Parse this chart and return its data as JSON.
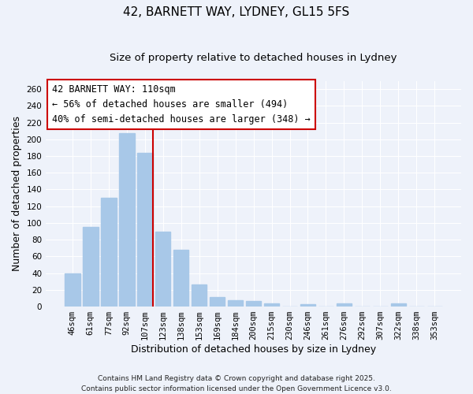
{
  "title": "42, BARNETT WAY, LYDNEY, GL15 5FS",
  "subtitle": "Size of property relative to detached houses in Lydney",
  "xlabel": "Distribution of detached houses by size in Lydney",
  "ylabel": "Number of detached properties",
  "categories": [
    "46sqm",
    "61sqm",
    "77sqm",
    "92sqm",
    "107sqm",
    "123sqm",
    "138sqm",
    "153sqm",
    "169sqm",
    "184sqm",
    "200sqm",
    "215sqm",
    "230sqm",
    "246sqm",
    "261sqm",
    "276sqm",
    "292sqm",
    "307sqm",
    "322sqm",
    "338sqm",
    "353sqm"
  ],
  "values": [
    40,
    95,
    130,
    207,
    184,
    90,
    68,
    26,
    11,
    8,
    7,
    4,
    0,
    3,
    0,
    4,
    0,
    0,
    4,
    0,
    0
  ],
  "bar_color": "#a8c8e8",
  "bar_edge_color": "#a8c8e8",
  "vline_color": "#cc0000",
  "vline_x_index": 4,
  "ylim": [
    0,
    270
  ],
  "yticks": [
    0,
    20,
    40,
    60,
    80,
    100,
    120,
    140,
    160,
    180,
    200,
    220,
    240,
    260
  ],
  "ann_line1": "42 BARNETT WAY: 110sqm",
  "ann_line2": "← 56% of detached houses are smaller (494)",
  "ann_line3": "40% of semi-detached houses are larger (348) →",
  "bg_color": "#eef2fa",
  "footer_line1": "Contains HM Land Registry data © Crown copyright and database right 2025.",
  "footer_line2": "Contains public sector information licensed under the Open Government Licence v3.0.",
  "title_fontsize": 11,
  "subtitle_fontsize": 9.5,
  "axis_label_fontsize": 9,
  "tick_fontsize": 7.5,
  "annotation_fontsize": 8.5,
  "footer_fontsize": 6.5
}
